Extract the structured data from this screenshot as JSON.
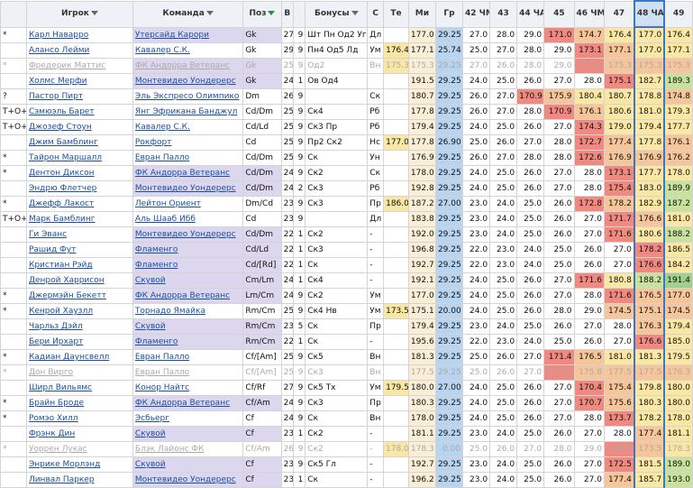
{
  "columns": [
    {
      "key": "flag",
      "label": "",
      "filter": false
    },
    {
      "key": "name",
      "label": "Игрок",
      "filter": true
    },
    {
      "key": "team",
      "label": "Команда",
      "filter": true
    },
    {
      "key": "pos",
      "label": "Поз",
      "filter": true,
      "active": true
    },
    {
      "key": "age",
      "label": "В",
      "filter": false
    },
    {
      "key": "n",
      "label": "",
      "filter": false
    },
    {
      "key": "bonus",
      "label": "Бонусы",
      "filter": true
    },
    {
      "key": "c",
      "label": "С",
      "filter": false
    },
    {
      "key": "te",
      "label": "Те",
      "filter": false
    },
    {
      "key": "m",
      "label": "Ми",
      "filter": false
    },
    {
      "key": "gr",
      "label": "Гр",
      "filter": false
    },
    {
      "key": "c42",
      "label": "42 ЧМ",
      "filter": false
    },
    {
      "key": "c43",
      "label": "43",
      "filter": false
    },
    {
      "key": "c44",
      "label": "44 ЧА",
      "filter": false
    },
    {
      "key": "c45",
      "label": "45",
      "filter": false
    },
    {
      "key": "c46",
      "label": "46 ЧМ",
      "filter": false
    },
    {
      "key": "c47",
      "label": "47",
      "filter": false
    },
    {
      "key": "c48",
      "label": "48 ЧА",
      "filter": false,
      "sorted": true
    },
    {
      "key": "c49",
      "label": "49",
      "filter": false
    }
  ],
  "colors": {
    "red": "#f08a80",
    "orange": "#f7c59a",
    "yellow": "#fbe7a4",
    "green": "#c8e29e",
    "dgreen": "#9fd08c",
    "hl": "#ddd6ef"
  },
  "rows": [
    {
      "flag": "*",
      "name": "Карл Наварро",
      "team": "Утерсайд Карори",
      "thl": true,
      "pos": "Gk",
      "age": "27",
      "n": "9",
      "bonus": "Шт Пн Од2 Уг",
      "c": "Дл",
      "te": "",
      "m": "177.0",
      "gr": "29.25",
      "v": [
        "27.0",
        "28.0",
        "29.0",
        "171.0",
        "174.7",
        "176.4",
        "177.0",
        "176.4"
      ],
      "h": [
        "",
        "",
        "",
        "red",
        "orange",
        "yellow",
        "yellow",
        "yellow"
      ]
    },
    {
      "flag": "",
      "name": "Алансо Лейми",
      "team": "Кавалер С.К.",
      "thl": false,
      "pos": "Gk",
      "age": "29",
      "n": "9",
      "bonus": "Пн4 Од5 Лд",
      "c": "Ум",
      "te": "176.4",
      "m": "177.1",
      "gr": "25.74",
      "v": [
        "25.0",
        "27.0",
        "28.0",
        "29.0",
        "173.1",
        "177.1",
        "177.0",
        "177.1"
      ],
      "h": [
        "",
        "",
        "",
        "",
        "red",
        "orange",
        "yellow",
        "yellow"
      ]
    },
    {
      "flag": "*",
      "name": "Фредерик Маттис",
      "team": "ФК Андорра Ветеранс",
      "thl": true,
      "dim": true,
      "pos": "Gk",
      "age": "25",
      "n": "9",
      "bonus": "Од2",
      "c": "Вн",
      "te": "175.3",
      "m": "175.3",
      "gr": "29.25",
      "v": [
        "27.0",
        "26.0",
        "28.0",
        "29.0",
        "171.6",
        "175.3",
        "175.3",
        "175.3"
      ],
      "h": [
        "",
        "",
        "",
        "",
        "red",
        "orange",
        "orange",
        "orange"
      ]
    },
    {
      "flag": "",
      "name": "Холмс Мерфи",
      "team": "Монтевидео Уондерерс",
      "thl": true,
      "pos": "Gk",
      "age": "24",
      "n": "1",
      "bonus": "Ов Од4",
      "c": "",
      "te": "",
      "m": "191.5",
      "gr": "29.25",
      "v": [
        "24.0",
        "25.0",
        "26.0",
        "27.0",
        "28.0",
        "175.1",
        "182.7",
        "189.3"
      ],
      "h": [
        "",
        "",
        "",
        "",
        "",
        "red",
        "yellow",
        "green"
      ]
    },
    {
      "flag": "?",
      "name": "Пастор Пирт",
      "team": "Эль Экспресо Олимпико",
      "thl": false,
      "pos": "Dm",
      "age": "26",
      "n": "9",
      "bonus": "",
      "c": "Ск",
      "te": "",
      "m": "180.7",
      "gr": "29.25",
      "v": [
        "26.0",
        "27.0",
        "170.9",
        "175.9",
        "180.4",
        "180.7",
        "178.8",
        "174.8"
      ],
      "h": [
        "",
        "",
        "red",
        "orange",
        "yellow",
        "yellow",
        "yellow",
        "orange"
      ]
    },
    {
      "flag": "T+O+",
      "name": "Сэмюэль Барет",
      "team": "Янг Эфрикана Банджул",
      "thl": false,
      "pos": "Cd/Dm",
      "age": "25",
      "n": "9",
      "bonus": "Ск4",
      "c": "Рб",
      "te": "",
      "m": "177.8",
      "gr": "29.25",
      "v": [
        "26.0",
        "27.0",
        "28.0",
        "170.9",
        "176.1",
        "180.6",
        "181.0",
        "179.3"
      ],
      "h": [
        "",
        "",
        "",
        "red",
        "orange",
        "yellow",
        "yellow",
        "yellow"
      ]
    },
    {
      "flag": "T+O+",
      "name": "Джозеф Стоун",
      "team": "Кавалер С.К.",
      "thl": false,
      "pos": "Cd/Ld",
      "age": "25",
      "n": "9",
      "bonus": "Ск3 Пр",
      "c": "Рб",
      "te": "",
      "m": "179.4",
      "gr": "29.25",
      "v": [
        "24.0",
        "25.0",
        "26.0",
        "27.0",
        "174.3",
        "179.0",
        "179.4",
        "177.7"
      ],
      "h": [
        "",
        "",
        "",
        "",
        "red",
        "yellow",
        "yellow",
        "yellow"
      ]
    },
    {
      "flag": "",
      "name": "Джим Бамблинг",
      "team": "Рокфорт",
      "thl": false,
      "pos": "Cd",
      "age": "25",
      "n": "9",
      "bonus": "Пр2 Ск2",
      "c": "Нс",
      "te": "177.0",
      "m": "177.8",
      "gr": "26.90",
      "v": [
        "25.0",
        "26.0",
        "27.0",
        "28.0",
        "172.7",
        "177.4",
        "177.8",
        "176.1"
      ],
      "h": [
        "",
        "",
        "",
        "",
        "red",
        "orange",
        "yellow",
        "orange"
      ]
    },
    {
      "flag": "*",
      "name": "Тайрон Маршалл",
      "team": "Евран Палло",
      "thl": false,
      "pos": "Cd/Dm",
      "age": "25",
      "n": "9",
      "bonus": "Ск",
      "c": "Ун",
      "te": "",
      "m": "176.9",
      "gr": "29.25",
      "v": [
        "26.0",
        "27.0",
        "28.0",
        "28.0",
        "172.6",
        "176.9",
        "176.9",
        "176.2"
      ],
      "h": [
        "",
        "",
        "",
        "",
        "red",
        "orange",
        "orange",
        "orange"
      ]
    },
    {
      "flag": "*",
      "name": "Дентон Диксон",
      "team": "ФК Андорра Ветеранс",
      "thl": true,
      "pos": "Cd/Dm",
      "age": "24",
      "n": "9",
      "bonus": "Ск2",
      "c": "Ск",
      "te": "",
      "m": "178.0",
      "gr": "29.25",
      "v": [
        "24.0",
        "25.0",
        "26.0",
        "27.0",
        "28.0",
        "173.1",
        "177.7",
        "178.0"
      ],
      "h": [
        "",
        "",
        "",
        "",
        "",
        "red",
        "yellow",
        "yellow"
      ]
    },
    {
      "flag": "",
      "name": "Эндрю Флетчер",
      "team": "Монтевидео Уондерерс",
      "thl": true,
      "pos": "Cd/Dm",
      "age": "24",
      "n": "2",
      "bonus": "Ск3",
      "c": "Рб",
      "te": "",
      "m": "192.8",
      "gr": "29.25",
      "v": [
        "24.0",
        "25.0",
        "26.0",
        "27.0",
        "28.0",
        "175.4",
        "183.0",
        "189.9"
      ],
      "h": [
        "",
        "",
        "",
        "",
        "",
        "red",
        "yellow",
        "green"
      ]
    },
    {
      "flag": "*",
      "name": "Джефф Лакост",
      "team": "Лейтон Ориент",
      "thl": false,
      "pos": "Dm/Cd",
      "age": "23",
      "n": "9",
      "bonus": "Ск3",
      "c": "Пр",
      "te": "186.0",
      "m": "187.2",
      "gr": "27.00",
      "v": [
        "23.0",
        "24.0",
        "25.0",
        "26.0",
        "172.8",
        "178.2",
        "182.9",
        "187.2"
      ],
      "h": [
        "",
        "",
        "",
        "",
        "red",
        "orange",
        "yellow",
        "green"
      ]
    },
    {
      "flag": "T+O+",
      "name": "Марк Бамблинг",
      "team": "Аль Шааб Ибб",
      "thl": false,
      "pos": "Cd",
      "age": "23",
      "n": "9",
      "bonus": "",
      "c": "Дл",
      "te": "",
      "m": "183.8",
      "gr": "29.25",
      "v": [
        "23.0",
        "24.0",
        "25.0",
        "26.0",
        "27.0",
        "171.7",
        "176.6",
        "181.0"
      ],
      "h": [
        "",
        "",
        "",
        "",
        "",
        "red",
        "orange",
        "yellow"
      ]
    },
    {
      "flag": "",
      "name": "Ги Эванс",
      "team": "Монтевидео Уондерерс",
      "thl": true,
      "pos": "Cd/Dm",
      "age": "22",
      "n": "1",
      "bonus": "Ск2",
      "c": "-",
      "te": "",
      "m": "192.0",
      "gr": "29.25",
      "v": [
        "23.0",
        "24.0",
        "25.0",
        "26.0",
        "27.0",
        "171.6",
        "180.6",
        "188.2"
      ],
      "h": [
        "",
        "",
        "",
        "",
        "",
        "red",
        "yellow",
        "green"
      ]
    },
    {
      "flag": "",
      "name": "Рашид Фут",
      "team": "Фламенго",
      "thl": true,
      "pos": "Cd/Ld",
      "age": "22",
      "n": "1",
      "bonus": "Ск3",
      "c": "-",
      "te": "",
      "m": "196.8",
      "gr": "29.25",
      "v": [
        "22.0",
        "23.0",
        "24.0",
        "25.0",
        "26.0",
        "27.0",
        "178.2",
        "186.5"
      ],
      "h": [
        "",
        "",
        "",
        "",
        "",
        "",
        "red",
        "yellow"
      ]
    },
    {
      "flag": "",
      "name": "Кристиан Рэйд",
      "team": "Фламенго",
      "thl": true,
      "pos": "Cd/[Rd]",
      "age": "22",
      "n": "1",
      "bonus": "Ск",
      "c": "-",
      "te": "",
      "m": "192.7",
      "gr": "29.25",
      "v": [
        "22.0",
        "23.0",
        "24.0",
        "25.0",
        "26.0",
        "27.0",
        "176.6",
        "184.2"
      ],
      "h": [
        "",
        "",
        "",
        "",
        "",
        "",
        "red",
        "yellow"
      ]
    },
    {
      "flag": "",
      "name": "Денрой Харрисон",
      "team": "Скувой",
      "thl": true,
      "pos": "Cm/Lm",
      "age": "24",
      "n": "1",
      "bonus": "Ск4",
      "c": "-",
      "te": "",
      "m": "192.1",
      "gr": "29.25",
      "v": [
        "24.0",
        "25.0",
        "26.0",
        "27.0",
        "171.6",
        "180.8",
        "188.2",
        "191.4"
      ],
      "h": [
        "",
        "",
        "",
        "",
        "red",
        "yellow",
        "green",
        "dgreen"
      ]
    },
    {
      "flag": "*",
      "name": "Джермэйн Бекетт",
      "team": "ФК Андорра Ветеранс",
      "thl": true,
      "pos": "Lm/Cm",
      "age": "24",
      "n": "9",
      "bonus": "Ск2",
      "c": "Ум",
      "te": "",
      "m": "177.0",
      "gr": "29.25",
      "v": [
        "24.0",
        "25.0",
        "26.0",
        "27.0",
        "28.0",
        "171.6",
        "176.5",
        "177.0"
      ],
      "h": [
        "",
        "",
        "",
        "",
        "",
        "red",
        "orange",
        "orange"
      ]
    },
    {
      "flag": "*",
      "name": "Кенрой Хаузлл",
      "team": "Торнадо Ямайка",
      "thl": false,
      "pos": "Rm/Cm",
      "age": "25",
      "n": "9",
      "bonus": "Ск4 Нв",
      "c": "Ум",
      "te": "173.5",
      "m": "175.1",
      "gr": "20.00",
      "v": [
        "24.0",
        "25.0",
        "26.0",
        "28.0",
        "29.0",
        "174.5",
        "175.1",
        "174.5"
      ],
      "h": [
        "",
        "",
        "",
        "",
        "",
        "orange",
        "orange",
        "orange"
      ]
    },
    {
      "flag": "",
      "name": "Чарльз Дэйл",
      "team": "Скувой",
      "thl": true,
      "pos": "Rm/Cm",
      "age": "23",
      "n": "5",
      "bonus": "Ск",
      "c": "Пр",
      "te": "",
      "m": "179.4",
      "gr": "29.25",
      "v": [
        "23.0",
        "24.0",
        "25.0",
        "26.0",
        "27.0",
        "28.0",
        "176.3",
        "179.4"
      ],
      "h": [
        "",
        "",
        "",
        "",
        "",
        "",
        "orange",
        "yellow"
      ]
    },
    {
      "flag": "",
      "name": "Бери Ирхарт",
      "team": "Фламенго",
      "thl": true,
      "pos": "Rm/Cm",
      "age": "22",
      "n": "1",
      "bonus": "Ск",
      "c": "-",
      "te": "",
      "m": "195.6",
      "gr": "29.25",
      "v": [
        "22.0",
        "23.0",
        "24.0",
        "25.0",
        "26.0",
        "27.0",
        "176.6",
        "185.0"
      ],
      "h": [
        "",
        "",
        "",
        "",
        "",
        "",
        "red",
        "yellow"
      ]
    },
    {
      "flag": "*",
      "name": "Кадиан Даунсвелл",
      "team": "Евран Палло",
      "thl": false,
      "pos": "Cf/[Am]",
      "age": "25",
      "n": "9",
      "bonus": "Ск5",
      "c": "Вн",
      "te": "",
      "m": "181.3",
      "gr": "29.25",
      "v": [
        "25.0",
        "26.0",
        "27.0",
        "171.4",
        "176.5",
        "181.0",
        "181.3",
        "179.5"
      ],
      "h": [
        "",
        "",
        "",
        "red",
        "orange",
        "yellow",
        "yellow",
        "yellow"
      ]
    },
    {
      "flag": "*",
      "name": "Дон Вирго",
      "team": "Евран Палло",
      "thl": false,
      "dim": true,
      "pos": "Cf/[Am]",
      "age": "25",
      "n": "9",
      "bonus": "Ск3",
      "c": "Вн",
      "te": "",
      "m": "177.5",
      "gr": "29.25",
      "v": [
        "25.0",
        "26.0",
        "27.0",
        "170.9",
        "175.8",
        "177.5",
        "177.5",
        "176.3"
      ],
      "h": [
        "",
        "",
        "",
        "red",
        "orange",
        "orange",
        "orange",
        "orange"
      ]
    },
    {
      "flag": "",
      "name": "Ширл Вильямс",
      "team": "Конор Найтс",
      "thl": false,
      "pos": "Cf/Rf",
      "age": "27",
      "n": "9",
      "bonus": "Ск5 Тх",
      "c": "Ум",
      "te": "179.5",
      "m": "180.0",
      "gr": "27.00",
      "v": [
        "24.0",
        "25.0",
        "26.0",
        "27.0",
        "170.4",
        "175.4",
        "179.8",
        "180.0"
      ],
      "h": [
        "",
        "",
        "",
        "",
        "red",
        "orange",
        "yellow",
        "yellow"
      ]
    },
    {
      "flag": "*",
      "name": "Брайн Броде",
      "team": "ФК Андорра Ветеранс",
      "thl": true,
      "pos": "Cf/Am",
      "age": "24",
      "n": "9",
      "bonus": "Ск3",
      "c": "Пр",
      "te": "",
      "m": "180.3",
      "gr": "29.25",
      "v": [
        "24.0",
        "25.0",
        "26.0",
        "27.0",
        "170.7",
        "175.6",
        "180.3",
        "180.0"
      ],
      "h": [
        "",
        "",
        "",
        "",
        "red",
        "orange",
        "yellow",
        "yellow"
      ]
    },
    {
      "flag": "*",
      "name": "Ромэо Хилл",
      "team": "Эсбьерг",
      "thl": false,
      "pos": "Cf",
      "age": "24",
      "n": "9",
      "bonus": "Ск",
      "c": "Вн",
      "te": "",
      "m": "178.0",
      "gr": "29.25",
      "v": [
        "24.0",
        "25.0",
        "26.0",
        "27.0",
        "28.0",
        "173.7",
        "178.2",
        "178.0"
      ],
      "h": [
        "",
        "",
        "",
        "",
        "",
        "red",
        "yellow",
        "yellow"
      ]
    },
    {
      "flag": "",
      "name": "Фрэнк Дин",
      "team": "Скувой",
      "thl": true,
      "pos": "Cf",
      "age": "23",
      "n": "1",
      "bonus": "Ск2",
      "c": "-",
      "te": "",
      "m": "181.1",
      "gr": "29.25",
      "v": [
        "23.0",
        "24.0",
        "25.0",
        "26.0",
        "27.0",
        "28.0",
        "177.4",
        "181.1"
      ],
      "h": [
        "",
        "",
        "",
        "",
        "",
        "",
        "orange",
        "yellow"
      ]
    },
    {
      "flag": "*",
      "name": "Уоррен Лукас",
      "team": "Блэк Лайонс ФК",
      "thl": false,
      "dim": true,
      "pos": "Cf/Am",
      "age": "26",
      "n": "9",
      "bonus": "Ск2",
      "c": "-",
      "te": "178.0",
      "m": "178.3",
      "gr": "0.00",
      "v": [
        "25.0",
        "26.0",
        "27.0",
        "28.0",
        "29.0",
        "169.8",
        "173.5",
        "178.3"
      ],
      "h": [
        "",
        "",
        "",
        "",
        "",
        "red",
        "orange",
        "yellow"
      ]
    },
    {
      "flag": "",
      "name": "Энрике Морлэнд",
      "team": "Скувой",
      "thl": true,
      "pos": "Cf",
      "age": "23",
      "n": "9",
      "bonus": "Ск5 Гл",
      "c": "-",
      "te": "",
      "m": "192.7",
      "gr": "29.25",
      "v": [
        "23.0",
        "24.0",
        "25.0",
        "26.0",
        "27.0",
        "172.5",
        "181.5",
        "189.0"
      ],
      "h": [
        "",
        "",
        "",
        "",
        "",
        "red",
        "yellow",
        "green"
      ]
    },
    {
      "flag": "",
      "name": "Линвал Паркер",
      "team": "Монтевидео Уондерерс",
      "thl": true,
      "pos": "Cf",
      "age": "23",
      "n": "1",
      "bonus": "Ск",
      "c": "-",
      "te": "",
      "m": "196.2",
      "gr": "29.25",
      "v": [
        "23.0",
        "24.0",
        "25.0",
        "26.0",
        "27.0",
        "177.4",
        "185.7",
        "193.0"
      ],
      "h": [
        "",
        "",
        "",
        "",
        "",
        "orange",
        "yellow",
        "green"
      ]
    }
  ]
}
